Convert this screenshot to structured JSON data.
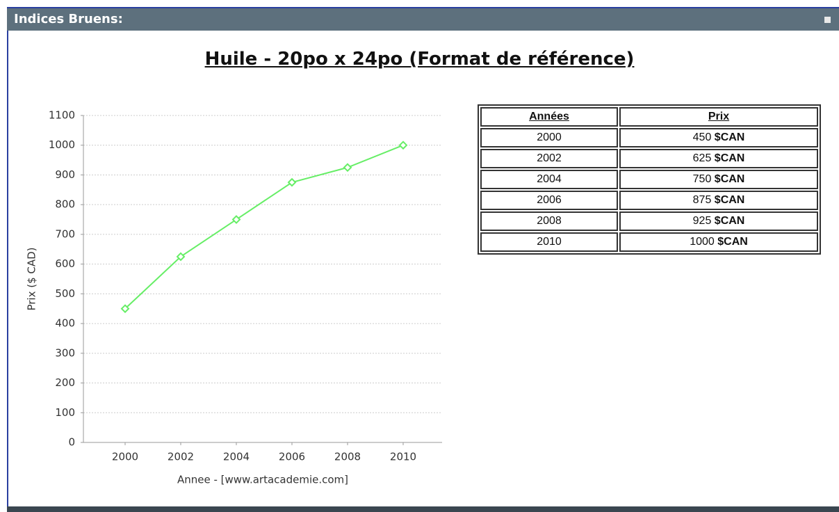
{
  "header": {
    "title": "Indices Bruens:"
  },
  "chart_data": {
    "type": "line",
    "title": "Huile - 20po x 24po (Format de référence)",
    "x_label": "Annee - [www.artacademie.com]",
    "y_label": "Prix ($ CAD)",
    "x": [
      2000,
      2002,
      2004,
      2006,
      2008,
      2010
    ],
    "values": [
      450,
      625,
      750,
      875,
      925,
      1000
    ],
    "color": "#66ee66",
    "xlim": [
      1998.5,
      2011.4
    ],
    "xticks": [
      2000,
      2002,
      2004,
      2006,
      2008,
      2010
    ],
    "ylim": [
      0,
      1100
    ],
    "yticks": [
      0,
      100,
      200,
      300,
      400,
      500,
      600,
      700,
      800,
      900,
      1000,
      1100
    ],
    "grid": true
  },
  "table": {
    "header": [
      "Années",
      "Prix"
    ],
    "rows": [
      [
        "2000",
        "450",
        "$CAN"
      ],
      [
        "2002",
        "625",
        "$CAN"
      ],
      [
        "2004",
        "750",
        "$CAN"
      ],
      [
        "2006",
        "875",
        "$CAN"
      ],
      [
        "2008",
        "925",
        "$CAN"
      ],
      [
        "2010",
        "1000",
        "$CAN"
      ]
    ]
  }
}
